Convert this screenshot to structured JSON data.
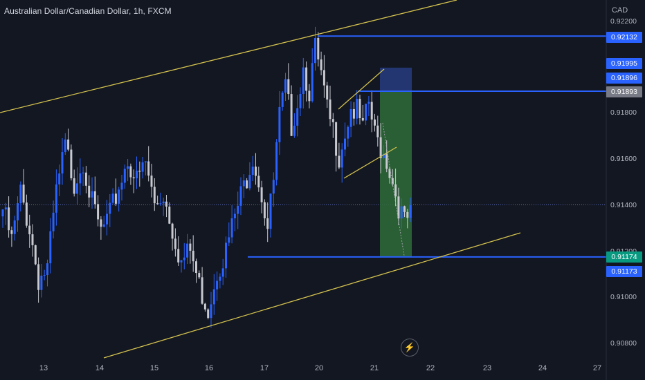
{
  "header": {
    "title": "Australian Dollar/Canadian Dollar, 1h, FXCM",
    "currency": "CAD"
  },
  "price_tags": [
    {
      "label": "0.92132",
      "color": "#2962ff"
    },
    {
      "label": "0.91995",
      "color": "#2962ff"
    },
    {
      "label": "0.91896",
      "color": "#2962ff"
    },
    {
      "label": "0.91893",
      "color": "#787b86"
    },
    {
      "label": "0.91174",
      "color": "#089981"
    },
    {
      "label": "0.91173",
      "color": "#2962ff"
    }
  ],
  "y_axis_labels": [
    "0.92200",
    "0.91800",
    "0.91600",
    "0.91400",
    "0.91200",
    "0.91000",
    "0.90800"
  ],
  "x_axis_labels": [
    "13",
    "14",
    "15",
    "16",
    "17",
    "20",
    "21",
    "22",
    "23",
    "24",
    "27"
  ],
  "colors": {
    "background": "#131722",
    "bull_candle": "#2962ff",
    "bear_candle": "#c8cad0",
    "trendline": "#d4c24e",
    "level_line": "#2962ff",
    "target_zone": "#2f6b37",
    "stop_zone": "#263a7a"
  },
  "icons": {
    "replay": "lightning-icon"
  },
  "chart_data": {
    "type": "candlestick",
    "title": "Australian Dollar/Canadian Dollar, 1h, FXCM",
    "ylabel": "CAD",
    "ylim": [
      0.9075,
      0.9225
    ],
    "x_ticks": [
      "13",
      "14",
      "15",
      "16",
      "17",
      "20",
      "21",
      "22",
      "23",
      "24",
      "27"
    ],
    "y_ticks": [
      0.922,
      0.918,
      0.916,
      0.914,
      0.912,
      0.91,
      0.908
    ],
    "grid": false,
    "horizontal_levels": [
      0.92132,
      0.91893,
      0.91174
    ],
    "current_price_dotted": 0.914,
    "trade_box": {
      "entry": 0.91893,
      "stop": 0.91995,
      "target": 0.91174
    },
    "price_anchors": [
      [
        0,
        0.9138
      ],
      [
        3,
        0.9124
      ],
      [
        6,
        0.9145
      ],
      [
        9,
        0.913
      ],
      [
        12,
        0.9108
      ],
      [
        15,
        0.9112
      ],
      [
        18,
        0.9145
      ],
      [
        21,
        0.9165
      ],
      [
        24,
        0.915
      ],
      [
        27,
        0.916
      ],
      [
        30,
        0.914
      ],
      [
        33,
        0.9128
      ],
      [
        36,
        0.9135
      ],
      [
        39,
        0.9148
      ],
      [
        42,
        0.916
      ],
      [
        45,
        0.915
      ],
      [
        48,
        0.9158
      ],
      [
        51,
        0.914
      ],
      [
        54,
        0.9145
      ],
      [
        57,
        0.913
      ],
      [
        60,
        0.9115
      ],
      [
        63,
        0.912
      ],
      [
        66,
        0.9105
      ],
      [
        69,
        0.9095
      ],
      [
        72,
        0.9112
      ],
      [
        75,
        0.912
      ],
      [
        78,
        0.9135
      ],
      [
        81,
        0.9148
      ],
      [
        84,
        0.9162
      ],
      [
        87,
        0.9145
      ],
      [
        89,
        0.913
      ],
      [
        91,
        0.915
      ],
      [
        93,
        0.9178
      ],
      [
        95,
        0.919
      ],
      [
        97,
        0.9175
      ],
      [
        99,
        0.9185
      ],
      [
        101,
        0.92
      ],
      [
        103,
        0.919
      ],
      [
        105,
        0.9207
      ],
      [
        107,
        0.9195
      ],
      [
        109,
        0.918
      ],
      [
        111,
        0.9172
      ],
      [
        113,
        0.9162
      ],
      [
        115,
        0.9172
      ],
      [
        117,
        0.9182
      ],
      [
        119,
        0.918
      ],
      [
        121,
        0.9172
      ],
      [
        123,
        0.9184
      ],
      [
        125,
        0.917
      ],
      [
        127,
        0.9165
      ],
      [
        129,
        0.916
      ],
      [
        131,
        0.915
      ],
      [
        133,
        0.914
      ],
      [
        135,
        0.9132
      ],
      [
        137,
        0.9135
      ]
    ]
  }
}
